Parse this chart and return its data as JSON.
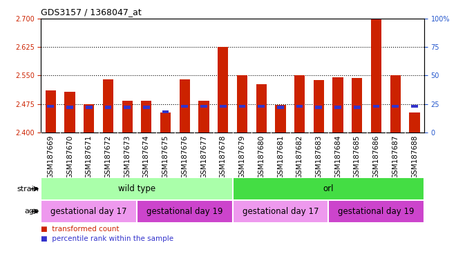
{
  "title": "GDS3157 / 1368047_at",
  "samples": [
    "GSM187669",
    "GSM187670",
    "GSM187671",
    "GSM187672",
    "GSM187673",
    "GSM187674",
    "GSM187675",
    "GSM187676",
    "GSM187677",
    "GSM187678",
    "GSM187679",
    "GSM187680",
    "GSM187681",
    "GSM187682",
    "GSM187683",
    "GSM187684",
    "GSM187685",
    "GSM187686",
    "GSM187687",
    "GSM187688"
  ],
  "bar_tops": [
    2.51,
    2.508,
    2.475,
    2.54,
    2.483,
    2.483,
    2.453,
    2.54,
    2.483,
    2.625,
    2.55,
    2.528,
    2.472,
    2.55,
    2.538,
    2.545,
    2.543,
    2.7,
    2.55,
    2.453
  ],
  "percentile_values": [
    23,
    22,
    22,
    22,
    22,
    22,
    18,
    23,
    23,
    23,
    23,
    23,
    22,
    23,
    22,
    22,
    22,
    23,
    23,
    23
  ],
  "bar_base": 2.4,
  "ylim_left": [
    2.4,
    2.7
  ],
  "ylim_right": [
    0,
    100
  ],
  "yticks_left": [
    2.4,
    2.475,
    2.55,
    2.625,
    2.7
  ],
  "yticks_right": [
    0,
    25,
    50,
    75,
    100
  ],
  "dotted_lines": [
    2.475,
    2.55,
    2.625
  ],
  "bar_color": "#cc2200",
  "blue_color": "#3333cc",
  "tick_color_left": "#cc2200",
  "tick_color_right": "#2255cc",
  "strain_groups": [
    {
      "label": "wild type",
      "start": 0,
      "end": 10,
      "color": "#aaffaa"
    },
    {
      "label": "orl",
      "start": 10,
      "end": 20,
      "color": "#44dd44"
    }
  ],
  "age_groups": [
    {
      "label": "gestational day 17",
      "start": 0,
      "end": 5,
      "color": "#ee99ee"
    },
    {
      "label": "gestational day 19",
      "start": 5,
      "end": 10,
      "color": "#cc44cc"
    },
    {
      "label": "gestational day 17",
      "start": 10,
      "end": 15,
      "color": "#ee99ee"
    },
    {
      "label": "gestational day 19",
      "start": 15,
      "end": 20,
      "color": "#cc44cc"
    }
  ],
  "legend_items": [
    {
      "label": "transformed count",
      "color": "#cc2200"
    },
    {
      "label": "percentile rank within the sample",
      "color": "#3333cc"
    }
  ],
  "bar_width": 0.55,
  "blue_bar_width": 0.35,
  "blue_bar_height": 0.008,
  "bg_color": "#f0f0f0",
  "label_font_size": 7.5,
  "tick_font_size": 7.0,
  "title_font_size": 9
}
